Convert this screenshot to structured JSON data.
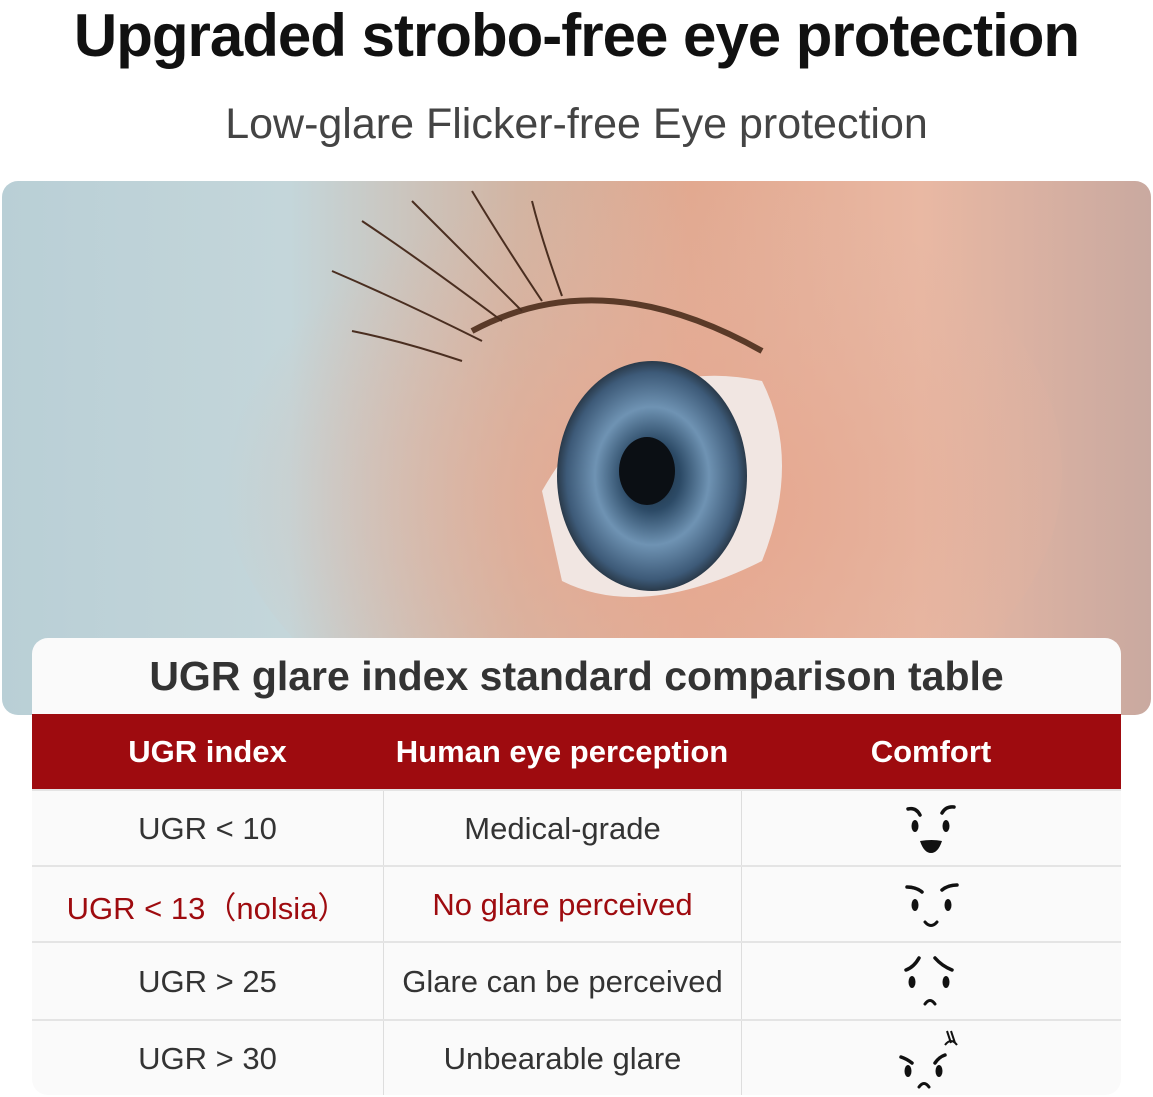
{
  "header": {
    "title": "Upgraded strobo-free eye protection",
    "subtitle": "Low-glare Flicker-free Eye protection"
  },
  "table": {
    "title": "UGR glare index standard comparison table",
    "header_color": "#9e0b0f",
    "highlight_color": "#9e0b0f",
    "columns": [
      "UGR index",
      "Human eye perception",
      "Comfort"
    ],
    "rows": [
      {
        "index": "UGR < 10",
        "perception": "Medical-grade",
        "comfort_icon": "big-smile-face-icon",
        "highlight": false
      },
      {
        "index": "UGR < 13（nolsia）",
        "perception": "No glare perceived",
        "comfort_icon": "small-smile-face-icon",
        "highlight": true
      },
      {
        "index": "UGR > 25",
        "perception": "Glare can be perceived",
        "comfort_icon": "worried-face-icon",
        "highlight": false
      },
      {
        "index": "UGR > 30",
        "perception": "Unbearable glare",
        "comfort_icon": "angry-face-icon",
        "highlight": false
      }
    ]
  }
}
